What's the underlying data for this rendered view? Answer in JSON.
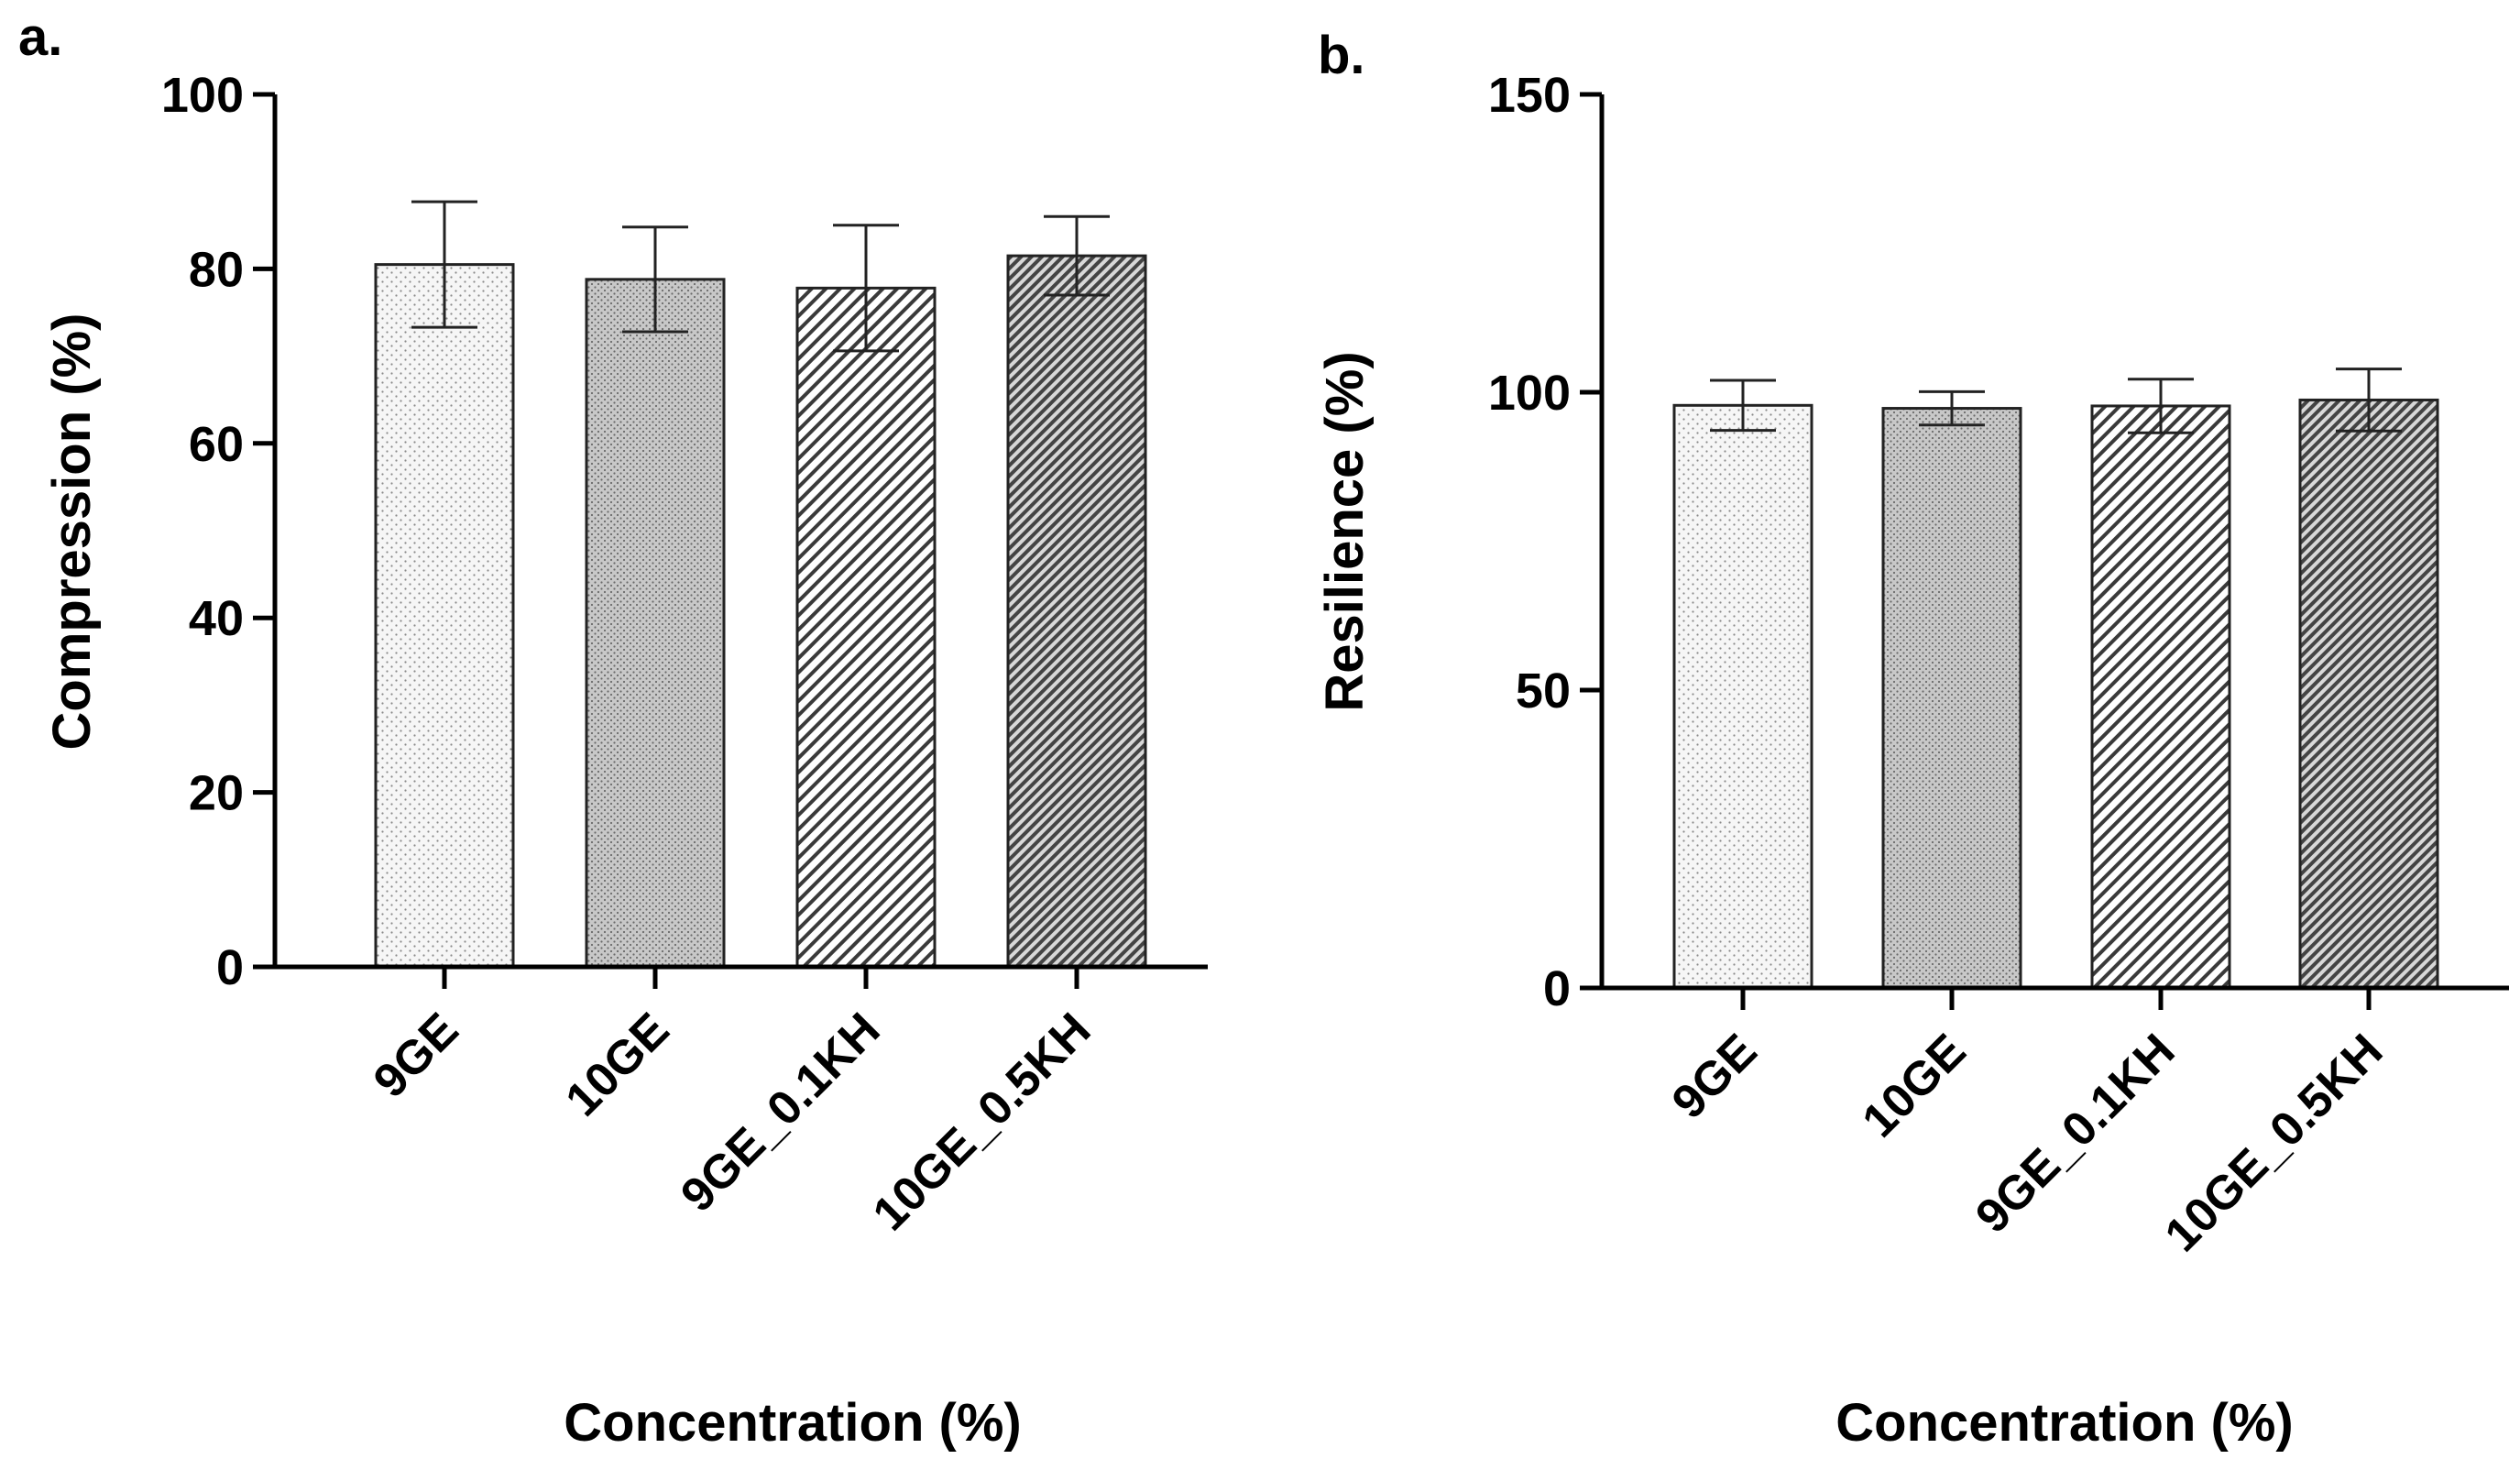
{
  "chart_data": [
    {
      "panel_label": "a.",
      "type": "bar",
      "title": "",
      "xlabel": "Concentration (%)",
      "ylabel": "Compression (%)",
      "ylim": [
        0,
        100
      ],
      "yticks": [
        0,
        20,
        40,
        60,
        80,
        100
      ],
      "categories": [
        "9GE",
        "10GE",
        "9GE_0.1KH",
        "10GE_0.5KH"
      ],
      "values": [
        80.5,
        78.8,
        77.8,
        81.5
      ],
      "errors": [
        7.2,
        6.0,
        7.2,
        4.5
      ],
      "patterns": [
        "dots-sparse",
        "dots-dense",
        "diag-sparse",
        "diag-dense"
      ],
      "legend": "none",
      "grid": false
    },
    {
      "panel_label": "b.",
      "type": "bar",
      "title": "",
      "xlabel": "Concentration (%)",
      "ylabel": "Resilience (%)",
      "ylim": [
        0,
        150
      ],
      "yticks": [
        0,
        50,
        100,
        150
      ],
      "categories": [
        "9GE",
        "10GE",
        "9GE_0.1KH",
        "10GE_0.5KH"
      ],
      "values": [
        97.8,
        97.3,
        97.7,
        98.7
      ],
      "errors": [
        4.2,
        2.8,
        4.5,
        5.2
      ],
      "patterns": [
        "dots-sparse",
        "dots-dense",
        "diag-sparse",
        "diag-dense"
      ],
      "legend": "none",
      "grid": false
    }
  ]
}
